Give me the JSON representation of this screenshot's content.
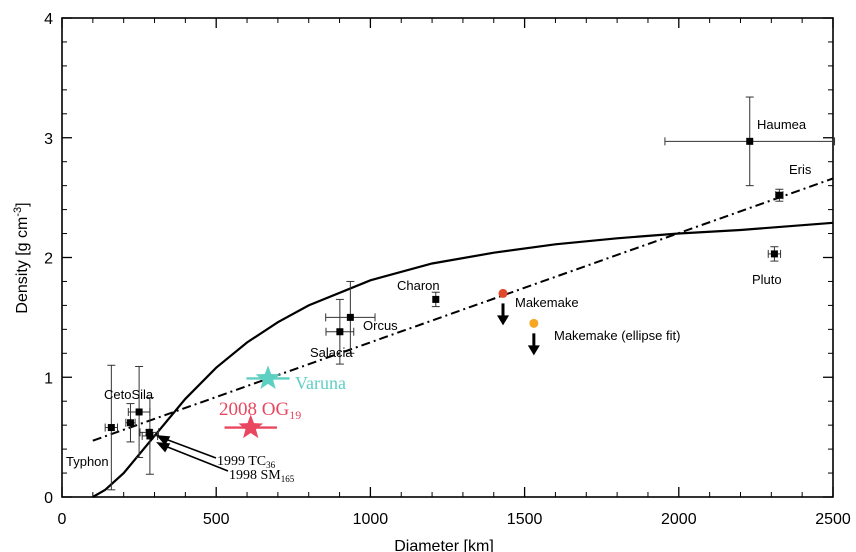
{
  "chart_data": {
    "type": "scatter",
    "xlabel": "Diameter [km]",
    "ylabel": "Density [g cm",
    "ylabel_sup": "-3",
    "ylabel_tail": "]",
    "xlim": [
      0,
      2500
    ],
    "ylim": [
      0,
      4
    ],
    "x_ticks": [
      0,
      500,
      1000,
      1500,
      2000,
      2500
    ],
    "y_ticks": [
      0,
      1,
      2,
      3,
      4
    ],
    "grid": false,
    "colors": {
      "axis": "#000000",
      "points": "#000000",
      "varuna": "#5ecfc3",
      "og19": "#e8475f",
      "makemake": "#e04a2a",
      "makemake_fit": "#f5a623"
    },
    "points": [
      {
        "name": "Haumea",
        "x": 2230,
        "y": 2.97,
        "xerr": 275,
        "yerr": 0.37
      },
      {
        "name": "Eris",
        "x": 2326,
        "y": 2.52,
        "xerr": 12,
        "yerr": 0.05
      },
      {
        "name": "Pluto",
        "x": 2310,
        "y": 2.03,
        "xerr": 20,
        "yerr": 0.06
      },
      {
        "name": "Charon",
        "x": 1212,
        "y": 1.65,
        "xerr": 0,
        "yerr": 0.06
      },
      {
        "name": "Orcus",
        "x": 935,
        "y": 1.5,
        "xerr": 80,
        "yerr": 0.3
      },
      {
        "name": "Salacia",
        "x": 901,
        "y": 1.38,
        "xerr": 45,
        "yerr": 0.27
      },
      {
        "name": "Ceto",
        "x": 222,
        "y": 0.62,
        "xerr": 15,
        "yerr": 0.16
      },
      {
        "name": "Sila",
        "x": 250,
        "y": 0.71,
        "xerr": 35,
        "yerr": 0.38
      },
      {
        "name": "Typhon",
        "x": 160,
        "y": 0.58,
        "xerr": 20,
        "yerr": 0.52
      },
      {
        "name": "1999 TC36",
        "x": 285,
        "y": 0.51,
        "xerr": 25,
        "yerr": 0.32
      },
      {
        "name": "1998 SM165",
        "x": 283,
        "y": 0.54,
        "xerr": 30,
        "yerr": 0.02
      }
    ],
    "labels": {
      "haumea": "Haumea",
      "eris": "Eris",
      "pluto": "Pluto",
      "charon": "Charon",
      "orcus": "Orcus",
      "salacia": "Salacia",
      "ceto_sila": "CetoSila",
      "typhon": "Typhon",
      "makemake": "Makemake",
      "makemake_fit": "Makemake (ellipse fit)",
      "varuna": "Varuna",
      "og19_main": "2008 OG",
      "og19_sub": "19",
      "tc36_main": "1999 TC",
      "tc36_sub": "36",
      "sm165_main": "1998 SM",
      "sm165_sub": "165"
    },
    "special_points": [
      {
        "name": "Makemake",
        "x": 1430,
        "y": 1.7,
        "upper_limit": true
      },
      {
        "name": "Makemake (ellipse fit)",
        "x": 1530,
        "y": 1.45,
        "upper_limit": true
      },
      {
        "name": "Varuna",
        "x": 668,
        "y": 0.99,
        "xerr": 70
      },
      {
        "name": "2008 OG19",
        "x": 612,
        "y": 0.58,
        "xerr": 85
      }
    ],
    "curves": [
      {
        "name": "solid",
        "x": [
          100,
          140,
          200,
          300,
          400,
          500,
          600,
          700,
          800,
          1000,
          1200,
          1400,
          1600,
          1800,
          2000,
          2200,
          2500
        ],
        "y": [
          0.0,
          0.06,
          0.2,
          0.51,
          0.82,
          1.08,
          1.29,
          1.46,
          1.6,
          1.81,
          1.95,
          2.04,
          2.11,
          2.16,
          2.2,
          2.23,
          2.29
        ]
      },
      {
        "name": "dash-dot",
        "x": [
          100,
          2500
        ],
        "y": [
          0.47,
          2.66
        ]
      }
    ]
  }
}
